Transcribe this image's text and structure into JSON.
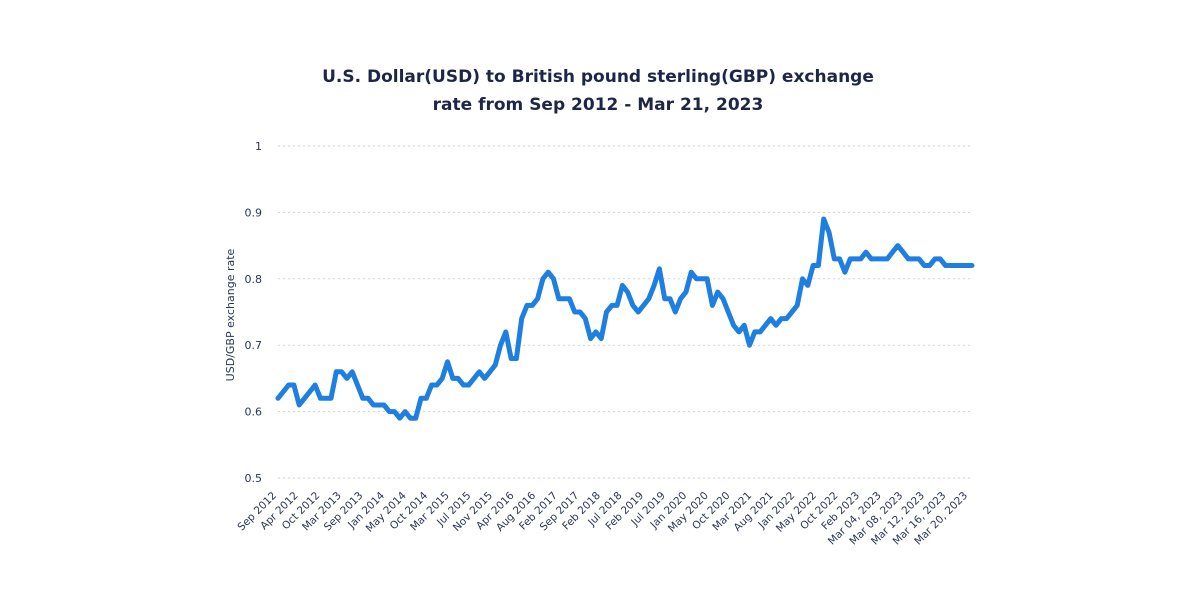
{
  "chart_data": {
    "type": "line",
    "title_line1": "U.S. Dollar(USD) to British pound sterling(GBP) exchange",
    "title_line2": "rate from Sep 2012 - Mar 21, 2023",
    "ylabel": "USD/GBP exchange rate",
    "ylim": [
      0.5,
      1.0
    ],
    "y_ticks": [
      "0.5",
      "0.6",
      "0.7",
      "0.8",
      "0.9",
      "1"
    ],
    "grid": true,
    "x_tick_labels": [
      "Sep 2012",
      "Apr 2012",
      "Oct 2012",
      "Mar 2013",
      "Sep 2013",
      "Jan 2014",
      "May 2014",
      "Oct 2014",
      "Mar 2015",
      "Jul 2015",
      "Nov 2015",
      "Apr 2016",
      "Aug 2016",
      "Feb 2017",
      "Sep 2017",
      "Feb 2018",
      "Jul 2018",
      "Feb 2019",
      "Jul 2019",
      "Jan 2020",
      "May 2020",
      "Oct 2020",
      "Mar 2021",
      "Aug 2021",
      "Jan 2022",
      "May 2022",
      "Oct 2022",
      "Feb 2023",
      "Mar 04, 2023",
      "Mar 08, 2023",
      "Mar 12, 2023",
      "Mar 16, 2023",
      "Mar 20, 2023"
    ],
    "series": [
      {
        "color": "#1f7fe0",
        "values": [
          0.62,
          0.63,
          0.64,
          0.64,
          0.61,
          0.62,
          0.63,
          0.64,
          0.62,
          0.62,
          0.62,
          0.66,
          0.66,
          0.65,
          0.66,
          0.64,
          0.62,
          0.62,
          0.61,
          0.61,
          0.61,
          0.6,
          0.6,
          0.59,
          0.6,
          0.59,
          0.59,
          0.62,
          0.62,
          0.64,
          0.64,
          0.65,
          0.675,
          0.65,
          0.65,
          0.64,
          0.64,
          0.65,
          0.66,
          0.65,
          0.66,
          0.67,
          0.7,
          0.72,
          0.68,
          0.68,
          0.74,
          0.76,
          0.76,
          0.77,
          0.8,
          0.81,
          0.8,
          0.77,
          0.77,
          0.77,
          0.75,
          0.75,
          0.74,
          0.71,
          0.72,
          0.71,
          0.75,
          0.76,
          0.76,
          0.79,
          0.78,
          0.76,
          0.75,
          0.76,
          0.77,
          0.79,
          0.815,
          0.77,
          0.77,
          0.75,
          0.77,
          0.78,
          0.81,
          0.8,
          0.8,
          0.8,
          0.76,
          0.78,
          0.77,
          0.75,
          0.73,
          0.72,
          0.73,
          0.7,
          0.72,
          0.72,
          0.73,
          0.74,
          0.73,
          0.74,
          0.74,
          0.75,
          0.76,
          0.8,
          0.79,
          0.82,
          0.82,
          0.89,
          0.87,
          0.83,
          0.83,
          0.81,
          0.83,
          0.83,
          0.83,
          0.84,
          0.83,
          0.83,
          0.83,
          0.83,
          0.84,
          0.85,
          0.84,
          0.83,
          0.83,
          0.83,
          0.82,
          0.82,
          0.83,
          0.83,
          0.82,
          0.82,
          0.82,
          0.82,
          0.82,
          0.82
        ]
      }
    ]
  }
}
